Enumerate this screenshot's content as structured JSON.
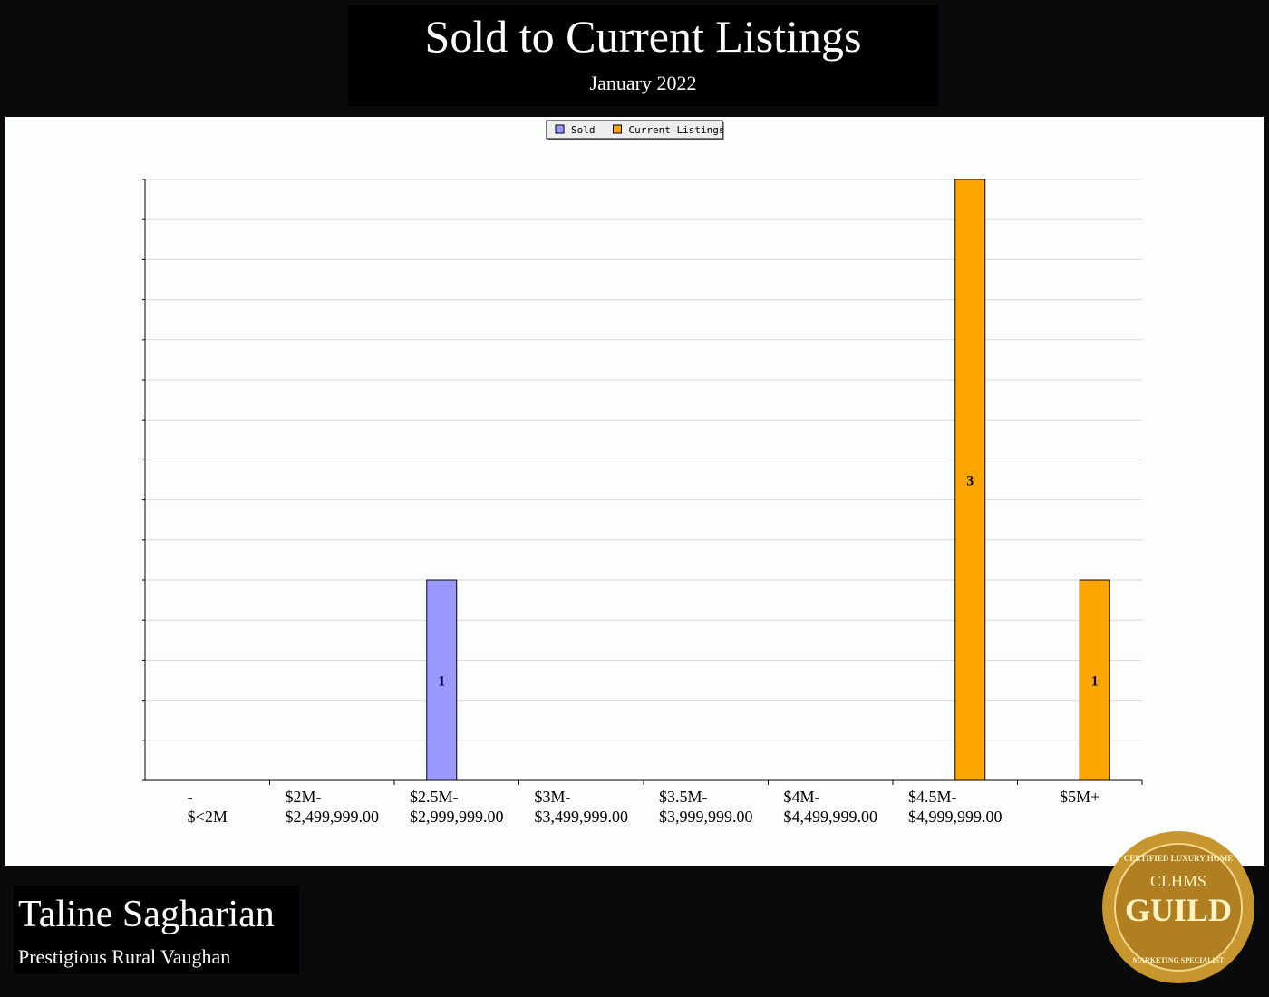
{
  "header": {
    "title": "Sold to Current Listings",
    "subtitle": "January 2022"
  },
  "chart_data": {
    "type": "bar",
    "categories": [
      "-\n$<2M",
      "$2M-\n$2,499,999.00",
      "$2.5M-\n$2,999,999.00",
      "$3M-\n$3,499,999.00",
      "$3.5M-\n$3,999,999.00",
      "$4M-\n$4,499,999.00",
      "$4.5M-\n$4,999,999.00",
      "$5M+"
    ],
    "series": [
      {
        "name": "Sold",
        "color": "#9999ff",
        "values": [
          0,
          0,
          1,
          0,
          0,
          0,
          0,
          0
        ]
      },
      {
        "name": "Current Listings",
        "color": "#ffa500",
        "values": [
          0,
          0,
          0,
          0,
          0,
          0,
          3,
          1
        ]
      }
    ],
    "ylim": [
      0,
      3
    ],
    "yticks": [
      0,
      0.2,
      0.4,
      0.6,
      0.8,
      1,
      1.2,
      1.4,
      1.6,
      1.8,
      2,
      2.2,
      2.4,
      2.6,
      2.8,
      3
    ],
    "show_ytick_labels": false,
    "grid": true,
    "legend": "top"
  },
  "footer": {
    "name": "Taline Sagharian",
    "subtitle": "Prestigious Rural Vaughan"
  },
  "badge": {
    "top": "CERTIFIED LUXURY HOME",
    "mid": "CLHMS",
    "main": "GUILD",
    "bottom": "MARKETING SPECIALIST"
  }
}
